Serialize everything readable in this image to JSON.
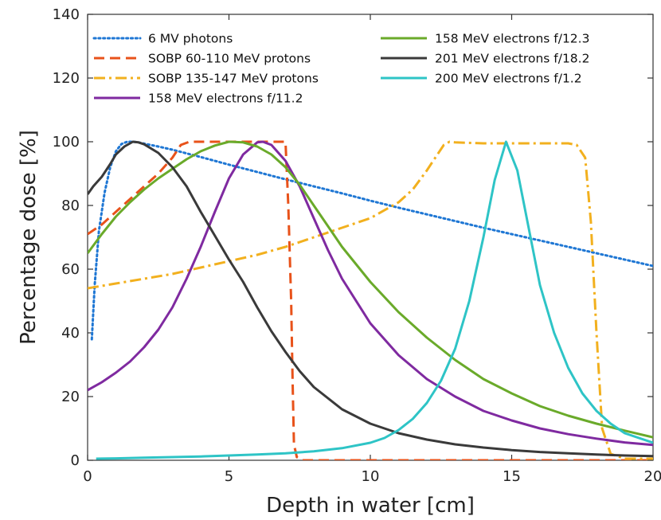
{
  "chart_data": {
    "type": "line",
    "title": "",
    "xlabel": "Depth in water [cm]",
    "ylabel": "Percentage dose [%]",
    "xlim": [
      0,
      20
    ],
    "ylim": [
      0,
      140
    ],
    "xticks": [
      "0",
      "5",
      "10",
      "15",
      "20"
    ],
    "yticks": [
      "0",
      "20",
      "40",
      "60",
      "80",
      "100",
      "120",
      "140"
    ],
    "grid": false,
    "legend_position": "top",
    "series": [
      {
        "name": "6 MV photons",
        "color": "#1f77d4",
        "style": "dotted",
        "x": [
          0.15,
          0.25,
          0.4,
          0.6,
          0.8,
          1.0,
          1.2,
          1.4,
          1.6,
          1.8,
          2.0,
          2.5,
          3,
          4,
          5,
          6,
          7,
          8,
          9,
          10,
          11,
          12,
          13,
          14,
          15,
          16,
          17,
          18,
          19,
          20
        ],
        "y": [
          38,
          55,
          72,
          84,
          92,
          97,
          99.3,
          100,
          100,
          99.8,
          99.4,
          98.5,
          97.5,
          95.2,
          92.8,
          90.5,
          88.2,
          86,
          83.8,
          81.5,
          79.3,
          77.2,
          75.1,
          73,
          71,
          69,
          67,
          65,
          63,
          61
        ]
      },
      {
        "name": "SOBP 60-110 MeV protons",
        "color": "#e8521a",
        "style": "dashed",
        "x": [
          0,
          0.5,
          1.0,
          1.5,
          2.0,
          2.5,
          3.0,
          3.3,
          3.6,
          3.8,
          4.0,
          5.0,
          6.0,
          7.0,
          7.1,
          7.2,
          7.25,
          7.3,
          7.4,
          7.6,
          8,
          10,
          12,
          14,
          16,
          18,
          19,
          20
        ],
        "y": [
          71,
          74,
          78,
          82,
          86,
          90,
          95,
          99,
          100,
          100,
          100,
          100,
          100,
          100,
          80,
          50,
          25,
          5,
          1,
          0,
          0,
          0,
          0,
          0,
          0,
          0,
          0,
          0
        ]
      },
      {
        "name": "SOBP 135-147 MeV protons",
        "color": "#f2b01e",
        "style": "dashdot",
        "x": [
          0,
          1,
          2,
          3,
          4,
          5,
          6,
          7,
          8,
          9,
          10,
          11,
          11.5,
          12,
          12.3,
          12.6,
          12.8,
          13,
          14,
          15,
          16,
          17,
          17.3,
          17.6,
          17.8,
          18.0,
          18.2,
          18.5,
          19,
          20
        ],
        "y": [
          54,
          55.5,
          57,
          58.5,
          60.5,
          62.5,
          64.5,
          67,
          70,
          73,
          76,
          81,
          85,
          91,
          95,
          99,
          100,
          99.8,
          99.5,
          99.5,
          99.5,
          99.5,
          99,
          95,
          75,
          40,
          10,
          2,
          0.5,
          0.5
        ]
      },
      {
        "name": "158 MeV electrons f/11.2",
        "color": "#7f2aa0",
        "style": "solid",
        "x": [
          0,
          0.5,
          1,
          1.5,
          2,
          2.5,
          3,
          3.5,
          4,
          4.5,
          5,
          5.5,
          6,
          6.2,
          6.5,
          7,
          7.5,
          8,
          8.5,
          9,
          10,
          11,
          12,
          13,
          14,
          15,
          16,
          17,
          18,
          19,
          20
        ],
        "y": [
          22,
          24.5,
          27.5,
          31,
          35.5,
          41,
          48,
          57,
          67,
          78,
          88.5,
          96,
          99.8,
          100,
          99,
          94,
          86,
          76,
          66,
          57,
          43,
          33,
          25.5,
          20,
          15.5,
          12.5,
          10,
          8.2,
          6.8,
          5.6,
          4.8
        ]
      },
      {
        "name": "158 MeV electrons f/12.3",
        "color": "#6aaa2a",
        "style": "solid",
        "x": [
          0,
          0.5,
          1,
          1.5,
          2,
          2.5,
          3,
          3.5,
          4,
          4.5,
          5,
          5.5,
          6,
          6.5,
          7,
          7.5,
          8,
          8.5,
          9,
          10,
          11,
          12,
          13,
          14,
          15,
          16,
          17,
          18,
          19,
          20
        ],
        "y": [
          65,
          71,
          76.5,
          81,
          85,
          88.5,
          91.5,
          94.5,
          97,
          98.8,
          100,
          99.8,
          98.5,
          96,
          92,
          86.5,
          80,
          73.5,
          67,
          56,
          46.5,
          38.5,
          31.5,
          25.5,
          21,
          17,
          14,
          11.5,
          9.3,
          7.2
        ]
      },
      {
        "name": "201 MeV electrons f/18.2",
        "color": "#3a3a3a",
        "style": "solid",
        "x": [
          0,
          0.2,
          0.5,
          0.8,
          1.0,
          1.3,
          1.6,
          1.8,
          2.0,
          2.5,
          3,
          3.5,
          4,
          4.5,
          5,
          5.5,
          6,
          6.5,
          7,
          7.5,
          8,
          9,
          10,
          11,
          12,
          13,
          14,
          15,
          16,
          17,
          18,
          19,
          20
        ],
        "y": [
          83.5,
          86,
          89,
          93,
          96,
          98.5,
          100,
          99.8,
          99.2,
          96.5,
          92,
          86,
          78,
          70.5,
          63,
          56,
          48,
          40.5,
          34,
          28,
          23,
          16,
          11.5,
          8.5,
          6.5,
          5,
          4,
          3.2,
          2.6,
          2.2,
          1.8,
          1.5,
          1.3
        ]
      },
      {
        "name": "200 MeV electrons f/1.2",
        "color": "#2ec4c6",
        "style": "solid",
        "x": [
          0.3,
          1,
          2,
          3,
          4,
          5,
          6,
          7,
          8,
          9,
          10,
          10.5,
          11,
          11.5,
          12,
          12.5,
          13,
          13.5,
          14,
          14.4,
          14.8,
          15.2,
          15.6,
          16,
          16.5,
          17,
          17.5,
          18,
          18.5,
          19,
          20
        ],
        "y": [
          0.5,
          0.6,
          0.8,
          1,
          1.2,
          1.5,
          1.8,
          2.2,
          2.8,
          3.8,
          5.5,
          7,
          9.5,
          13,
          18,
          25,
          35,
          50,
          70,
          88,
          100,
          91,
          73,
          55,
          40,
          29,
          21,
          15.5,
          11.5,
          8.5,
          5.5
        ]
      }
    ]
  }
}
